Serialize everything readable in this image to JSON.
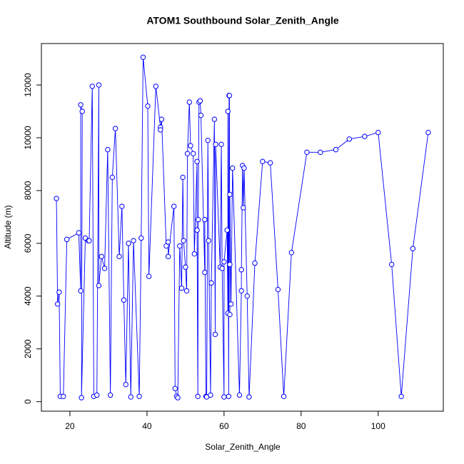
{
  "chart_data": {
    "type": "line",
    "title": "ATOM1 Southbound Solar_Zenith_Angle",
    "x_label": "Solar_Zenith_Angle",
    "y_label": "Altitude (m)",
    "xlim": [
      12.6,
      116.9
    ],
    "ylim": [
      -360,
      13570
    ],
    "xticks": [
      20,
      40,
      60,
      80,
      100
    ],
    "yticks": [
      0,
      2000,
      4000,
      6000,
      8000,
      10000,
      12000
    ],
    "series": [
      {
        "color": "#0000ff",
        "x": [
          16.5,
          16.8,
          17.2,
          17.5,
          18.3,
          19.2,
          22.3,
          22.8,
          22.8,
          23.2,
          23.0,
          24,
          24.8,
          25,
          25.8,
          26.2,
          27,
          27.5,
          27.5,
          28.2,
          29,
          29.8,
          30.5,
          31,
          31.8,
          32.8,
          33.5,
          34,
          34.5,
          35.2,
          35.8,
          36.5,
          38,
          38.5,
          39,
          40.2,
          40.5,
          42.3,
          43.5,
          43.5,
          43.8,
          45,
          45.5,
          45.5,
          47,
          47.3,
          47.7,
          48,
          48.5,
          49,
          49.3,
          49.5,
          50,
          50.3,
          50.5,
          51,
          51.3,
          52,
          52.3,
          53,
          53,
          53.2,
          53.3,
          53.5,
          53.8,
          54,
          55,
          55,
          55.3,
          55.5,
          55.8,
          56,
          56.5,
          56.7,
          57.5,
          57.7,
          57.8,
          59,
          59.3,
          59.5,
          60,
          60,
          60.8,
          61,
          61,
          61.2,
          61.3,
          61.4,
          61.5,
          61.5,
          61.5,
          61.8,
          62.2,
          64,
          64.5,
          64.5,
          64.8,
          65,
          65.2,
          66,
          66.5,
          68,
          70,
          72,
          74,
          75.5,
          77.5,
          81.5,
          85,
          89,
          92.5,
          96.5,
          100,
          103.5,
          106,
          109,
          113
        ],
        "values": [
          7700,
          3700,
          4150,
          200,
          200,
          6150,
          6400,
          4200,
          11250,
          11000,
          150,
          6200,
          6100,
          6100,
          11950,
          200,
          250,
          12000,
          4400,
          5500,
          5050,
          9550,
          250,
          8500,
          10350,
          5500,
          7400,
          3850,
          650,
          6000,
          180,
          6100,
          200,
          6200,
          13050,
          11200,
          4750,
          11950,
          10400,
          10300,
          10700,
          5900,
          6050,
          5500,
          7400,
          500,
          200,
          150,
          5900,
          4300,
          8500,
          6100,
          5100,
          4200,
          9400,
          11350,
          9700,
          9400,
          5600,
          9100,
          6500,
          200,
          6900,
          11350,
          11400,
          10850,
          4900,
          6900,
          200,
          180,
          9900,
          6100,
          250,
          4500,
          10700,
          2550,
          9750,
          5100,
          9750,
          5050,
          180,
          5300,
          6500,
          3350,
          11000,
          200,
          11600,
          11600,
          3300,
          5200,
          7850,
          3700,
          8850,
          250,
          4200,
          5000,
          8950,
          7350,
          8850,
          4000,
          180,
          5250,
          9100,
          9050,
          4250,
          200,
          5650,
          9450,
          9450,
          9550,
          9950,
          10050,
          10200,
          5200,
          200,
          5800,
          10200
        ]
      }
    ]
  }
}
